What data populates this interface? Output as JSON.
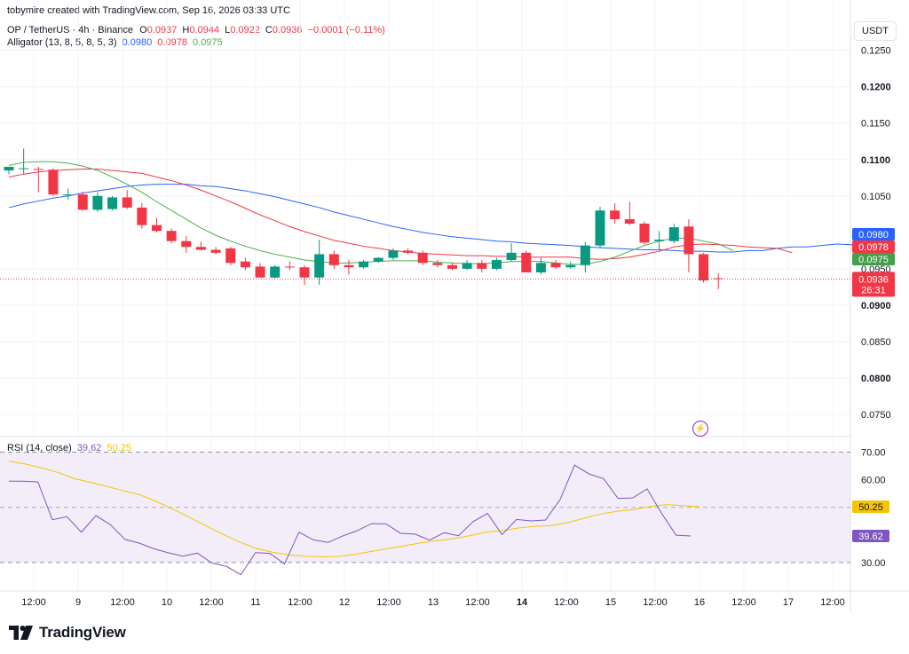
{
  "header": {
    "attribution": "tobymire created with TradingView.com, Sep 16, 2026 03:33 UTC",
    "symbol": "OP / TetherUS · 4h · Binance",
    "o_label": "O",
    "o_value": "0.0937",
    "h_label": "H",
    "h_value": "0.0944",
    "l_label": "L",
    "l_value": "0.0922",
    "c_label": "C",
    "c_value": "0.0936",
    "change": "−0.0001 (−0.11%)",
    "alligator_label": "Alligator (13, 8, 5, 8, 5, 3)",
    "alligator_jaw": "0.0980",
    "alligator_teeth": "0.0978",
    "alligator_lips": "0.0975"
  },
  "currency_button": "USDT",
  "rsi_header": {
    "label": "RSI (14, close)",
    "rsi_value": "39.62",
    "ma_value": "50.25"
  },
  "branding": {
    "logo_text": "TradingView"
  },
  "colors": {
    "up": "#089981",
    "down": "#f23645",
    "jaw": "#2962ff",
    "teeth": "#f23645",
    "lips": "#4caf50",
    "rsi": "#7e57c2",
    "rsi_ma": "#f7c500",
    "rsi_band": "#ede7f6"
  },
  "chart_data": [
    {
      "type": "candlestick",
      "title": "OP / TetherUS · 4h · Binance",
      "y_ticks": [
        "0.1250",
        "0.1200",
        "0.1150",
        "0.1100",
        "0.1050",
        "0.0950",
        "0.0900",
        "0.0850",
        "0.0800",
        "0.0750"
      ],
      "bold_ticks": [
        "0.1200",
        "0.1100",
        "0.0900",
        "0.0800"
      ],
      "ylim": [
        0.0722,
        0.1302
      ],
      "x_ticks": [
        "12:00",
        "9",
        "12:00",
        "10",
        "12:00",
        "11",
        "12:00",
        "12",
        "12:00",
        "13",
        "12:00",
        "14",
        "12:00",
        "15",
        "12:00",
        "16",
        "12:00",
        "17",
        "12:00"
      ],
      "bold_x_ticks": [
        "14"
      ],
      "candles": [
        {
          "o": 0.1085,
          "h": 0.109,
          "l": 0.108,
          "c": 0.109
        },
        {
          "o": 0.1088,
          "h": 0.1115,
          "l": 0.108,
          "c": 0.1088
        },
        {
          "o": 0.1087,
          "h": 0.109,
          "l": 0.1055,
          "c": 0.1086
        },
        {
          "o": 0.1086,
          "h": 0.1088,
          "l": 0.105,
          "c": 0.1052
        },
        {
          "o": 0.1052,
          "h": 0.106,
          "l": 0.1045,
          "c": 0.1052
        },
        {
          "o": 0.1052,
          "h": 0.1056,
          "l": 0.103,
          "c": 0.1031
        },
        {
          "o": 0.1031,
          "h": 0.1055,
          "l": 0.1028,
          "c": 0.105
        },
        {
          "o": 0.1032,
          "h": 0.105,
          "l": 0.103,
          "c": 0.1048
        },
        {
          "o": 0.1048,
          "h": 0.1058,
          "l": 0.1032,
          "c": 0.1034
        },
        {
          "o": 0.1034,
          "h": 0.104,
          "l": 0.1005,
          "c": 0.101
        },
        {
          "o": 0.101,
          "h": 0.102,
          "l": 0.1,
          "c": 0.1002
        },
        {
          "o": 0.1002,
          "h": 0.1005,
          "l": 0.0985,
          "c": 0.0988
        },
        {
          "o": 0.0988,
          "h": 0.0995,
          "l": 0.0972,
          "c": 0.098
        },
        {
          "o": 0.098,
          "h": 0.0987,
          "l": 0.0975,
          "c": 0.0976
        },
        {
          "o": 0.0976,
          "h": 0.098,
          "l": 0.097,
          "c": 0.0972
        },
        {
          "o": 0.0978,
          "h": 0.098,
          "l": 0.0955,
          "c": 0.0958
        },
        {
          "o": 0.096,
          "h": 0.0965,
          "l": 0.0948,
          "c": 0.0952
        },
        {
          "o": 0.0953,
          "h": 0.0958,
          "l": 0.0938,
          "c": 0.0938
        },
        {
          "o": 0.0938,
          "h": 0.0955,
          "l": 0.0937,
          "c": 0.0953
        },
        {
          "o": 0.0953,
          "h": 0.096,
          "l": 0.0948,
          "c": 0.0952
        },
        {
          "o": 0.0952,
          "h": 0.0955,
          "l": 0.0928,
          "c": 0.0938
        },
        {
          "o": 0.0938,
          "h": 0.099,
          "l": 0.0928,
          "c": 0.097
        },
        {
          "o": 0.097,
          "h": 0.0975,
          "l": 0.095,
          "c": 0.0955
        },
        {
          "o": 0.0955,
          "h": 0.0962,
          "l": 0.0942,
          "c": 0.0952
        },
        {
          "o": 0.0952,
          "h": 0.0962,
          "l": 0.095,
          "c": 0.096
        },
        {
          "o": 0.096,
          "h": 0.0966,
          "l": 0.0958,
          "c": 0.0965
        },
        {
          "o": 0.0965,
          "h": 0.0978,
          "l": 0.0962,
          "c": 0.0975
        },
        {
          "o": 0.0975,
          "h": 0.0978,
          "l": 0.097,
          "c": 0.0972
        },
        {
          "o": 0.0972,
          "h": 0.0975,
          "l": 0.0955,
          "c": 0.0958
        },
        {
          "o": 0.0958,
          "h": 0.0962,
          "l": 0.0952,
          "c": 0.0955
        },
        {
          "o": 0.0955,
          "h": 0.0958,
          "l": 0.0948,
          "c": 0.095
        },
        {
          "o": 0.095,
          "h": 0.0962,
          "l": 0.0948,
          "c": 0.0958
        },
        {
          "o": 0.0958,
          "h": 0.0962,
          "l": 0.0945,
          "c": 0.095
        },
        {
          "o": 0.095,
          "h": 0.0965,
          "l": 0.0948,
          "c": 0.0962
        },
        {
          "o": 0.0962,
          "h": 0.0985,
          "l": 0.096,
          "c": 0.0972
        },
        {
          "o": 0.0972,
          "h": 0.0975,
          "l": 0.0945,
          "c": 0.0945
        },
        {
          "o": 0.0945,
          "h": 0.0965,
          "l": 0.0942,
          "c": 0.0958
        },
        {
          "o": 0.0958,
          "h": 0.0962,
          "l": 0.095,
          "c": 0.0952
        },
        {
          "o": 0.0952,
          "h": 0.096,
          "l": 0.095,
          "c": 0.0955
        },
        {
          "o": 0.0955,
          "h": 0.0987,
          "l": 0.0945,
          "c": 0.0982
        },
        {
          "o": 0.0982,
          "h": 0.1035,
          "l": 0.0978,
          "c": 0.103
        },
        {
          "o": 0.103,
          "h": 0.104,
          "l": 0.1012,
          "c": 0.1018
        },
        {
          "o": 0.1018,
          "h": 0.1042,
          "l": 0.101,
          "c": 0.1012
        },
        {
          "o": 0.1012,
          "h": 0.1015,
          "l": 0.0983,
          "c": 0.0986
        },
        {
          "o": 0.0988,
          "h": 0.1002,
          "l": 0.0975,
          "c": 0.099
        },
        {
          "o": 0.0988,
          "h": 0.1012,
          "l": 0.0985,
          "c": 0.1007
        },
        {
          "o": 0.1008,
          "h": 0.1018,
          "l": 0.0945,
          "c": 0.097
        },
        {
          "o": 0.097,
          "h": 0.0972,
          "l": 0.0931,
          "c": 0.0934
        },
        {
          "o": 0.0937,
          "h": 0.0944,
          "l": 0.0922,
          "c": 0.0936
        }
      ],
      "series": [
        {
          "name": "Jaw",
          "values": [
            0.1034,
            0.1039,
            0.1043,
            0.1047,
            0.105,
            0.1054,
            0.1057,
            0.106,
            0.1063,
            0.1065,
            0.1066,
            0.1066,
            0.1066,
            0.1064,
            0.1063,
            0.106,
            0.1057,
            0.1053,
            0.1049,
            0.1044,
            0.1039,
            0.1034,
            0.1028,
            0.1023,
            0.1018,
            0.1013,
            0.1008,
            0.1004,
            0.1,
            0.0997,
            0.0994,
            0.0992,
            0.099,
            0.0988,
            0.0987,
            0.0985,
            0.0984,
            0.0983,
            0.0982,
            0.098,
            0.0979,
            0.0978,
            0.0977,
            0.0976,
            0.0976,
            0.0975,
            0.0974,
            0.0974,
            0.0973,
            0.0973,
            0.0975,
            0.0975,
            0.0978,
            0.098,
            0.098,
            0.0982,
            0.0984,
            0.0983,
            0.098
          ]
        },
        {
          "name": "Teeth",
          "values": [
            0.1076,
            0.108,
            0.1083,
            0.1085,
            0.1086,
            0.1087,
            0.1087,
            0.1085,
            0.1083,
            0.1081,
            0.1076,
            0.1071,
            0.1065,
            0.1058,
            0.105,
            0.1042,
            0.1033,
            0.1024,
            0.1016,
            0.1008,
            0.1001,
            0.0995,
            0.0989,
            0.0985,
            0.0981,
            0.0978,
            0.0975,
            0.0973,
            0.0971,
            0.097,
            0.0969,
            0.0968,
            0.0968,
            0.0967,
            0.0967,
            0.0966,
            0.0966,
            0.0966,
            0.0966,
            0.0964,
            0.0963,
            0.0964,
            0.0966,
            0.097,
            0.0974,
            0.098,
            0.0983,
            0.0984,
            0.0983,
            0.0982,
            0.098,
            0.0979,
            0.0978,
            0.0972
          ]
        },
        {
          "name": "Lips",
          "values": [
            0.1092,
            0.1096,
            0.1097,
            0.1097,
            0.1095,
            0.1091,
            0.1085,
            0.1076,
            0.1066,
            0.1055,
            0.1042,
            0.103,
            0.1018,
            0.1006,
            0.0996,
            0.0988,
            0.0981,
            0.0975,
            0.097,
            0.0966,
            0.0962,
            0.096,
            0.0958,
            0.0958,
            0.0959,
            0.096,
            0.0961,
            0.0961,
            0.0961,
            0.0959,
            0.0958,
            0.0957,
            0.0957,
            0.0958,
            0.096,
            0.096,
            0.096,
            0.0958,
            0.0956,
            0.0956,
            0.096,
            0.0966,
            0.0974,
            0.0982,
            0.0988,
            0.0992,
            0.0992,
            0.0988,
            0.0984,
            0.0975
          ]
        }
      ],
      "last_price": "0.0936",
      "countdown": "26:31",
      "price_labels": [
        "0.0980",
        "0.0978",
        "0.0975",
        "0.0936"
      ]
    },
    {
      "type": "line",
      "title": "RSI (14, close)",
      "y_ticks": [
        "70.00",
        "60.00",
        "50.00",
        "30.00"
      ],
      "ylim": [
        20,
        75
      ],
      "band": [
        30,
        70
      ],
      "midline": 50,
      "series": [
        {
          "name": "RSI",
          "values": [
            59.5,
            59.5,
            59.2,
            45.5,
            46.6,
            41.0,
            47.0,
            43.7,
            38.4,
            37.0,
            35.0,
            33.5,
            32.3,
            33.4,
            29.8,
            28.6,
            25.6,
            33.6,
            33.3,
            29.5,
            41.0,
            38.2,
            37.3,
            39.6,
            41.5,
            44.1,
            44.0,
            40.6,
            40.3,
            38.1,
            40.8,
            39.7,
            44.8,
            47.8,
            40.1,
            45.6,
            45.1,
            45.4,
            52.8,
            65.3,
            62.1,
            60.4,
            53.2,
            53.4,
            56.7,
            47.8,
            39.9,
            39.62
          ]
        },
        {
          "name": "RSI-based MA",
          "values": [
            66.7,
            65.7,
            64.3,
            62.6,
            60.4,
            59.0,
            57.5,
            56.0,
            54.5,
            52.0,
            49.3,
            46.3,
            43.3,
            40.3,
            37.5,
            35.2,
            33.8,
            32.8,
            32.3,
            32.1,
            32.2,
            32.9,
            34.0,
            35.0,
            36.0,
            37.1,
            37.9,
            38.6,
            39.7,
            41.0,
            41.6,
            42.5,
            43.1,
            43.4,
            44.5,
            46.1,
            47.6,
            48.6,
            49.2,
            50.3,
            51.0,
            50.6,
            50.25
          ]
        }
      ]
    }
  ]
}
